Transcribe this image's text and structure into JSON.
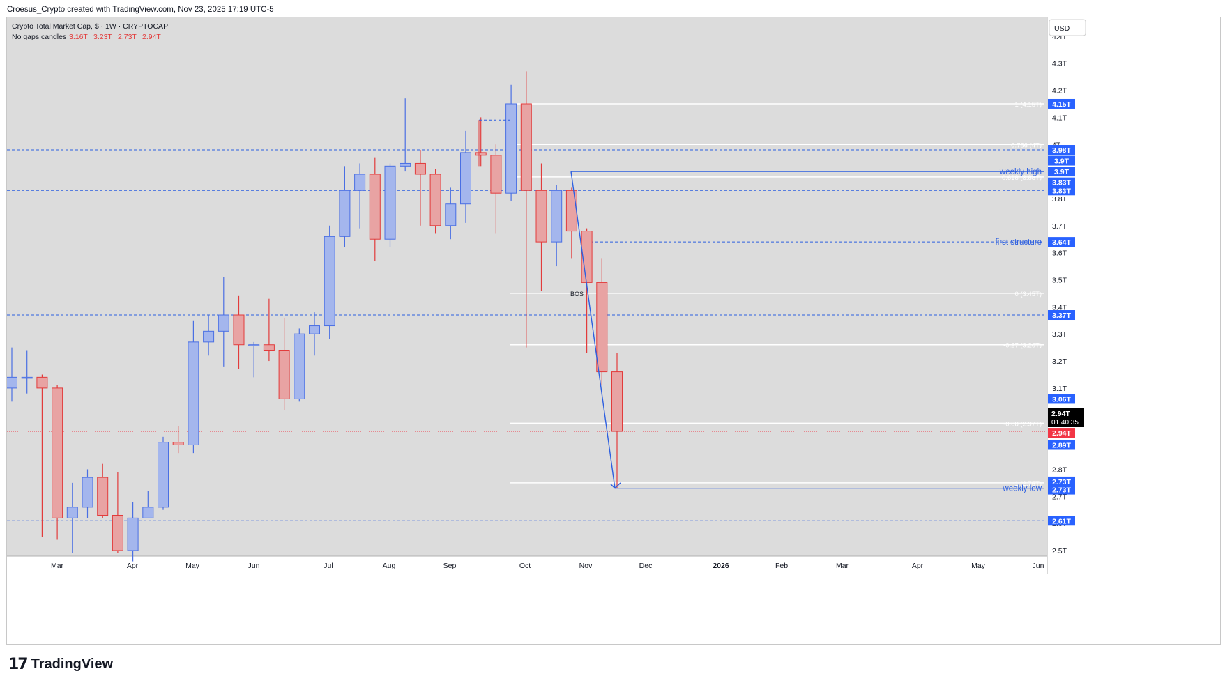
{
  "header": {
    "credit": "Croesus_Crypto created with TradingView.com, Nov 23, 2025 17:19 UTC-5"
  },
  "legend": {
    "title": "Crypto Total Market Cap, $ · 1W · CRYPTOCAP",
    "subtitle": "No gaps candles",
    "ohlc": [
      "3.16T",
      "3.23T",
      "2.73T",
      "2.94T"
    ]
  },
  "currency_button": "USD",
  "footer": {
    "brand": "TradingView",
    "logo_icon": "tradingview-logo-icon"
  },
  "colors": {
    "background": "#dcdcdc",
    "up": "#a4b6ed",
    "up_border": "#4a6fe3",
    "down": "#e8a3a3",
    "down_border": "#e23b3b",
    "level_line": "#2d5fe0",
    "fib_line": "#ffffff",
    "price_badge": "#2962ff",
    "last_price": "#f23645"
  },
  "chart_data": {
    "type": "candlestick",
    "title": "Crypto Total Market Cap",
    "ylim": [
      2.5,
      4.4
    ],
    "y_ticks": [
      "2.5T",
      "2.6T",
      "2.7T",
      "2.8T",
      "2.9T",
      "3T",
      "3.1T",
      "3.2T",
      "3.3T",
      "3.4T",
      "3.5T",
      "3.6T",
      "3.7T",
      "3.8T",
      "3.9T",
      "4T",
      "4.1T",
      "4.2T",
      "4.3T",
      "4.4T"
    ],
    "x_ticks": [
      "Mar",
      "Apr",
      "May",
      "Jun",
      "Jul",
      "Aug",
      "Sep",
      "Oct",
      "Nov",
      "Dec",
      "2026",
      "Feb",
      "Mar",
      "Apr",
      "May",
      "Jun"
    ],
    "candles": [
      {
        "o": 3.1,
        "h": 3.25,
        "l": 3.05,
        "c": 3.14
      },
      {
        "o": 3.14,
        "h": 3.24,
        "l": 3.08,
        "c": 3.14
      },
      {
        "o": 3.14,
        "h": 3.15,
        "l": 2.55,
        "c": 3.1
      },
      {
        "o": 3.1,
        "h": 3.11,
        "l": 2.54,
        "c": 2.62
      },
      {
        "o": 2.62,
        "h": 2.75,
        "l": 2.49,
        "c": 2.66
      },
      {
        "o": 2.66,
        "h": 2.8,
        "l": 2.62,
        "c": 2.77
      },
      {
        "o": 2.77,
        "h": 2.82,
        "l": 2.62,
        "c": 2.63
      },
      {
        "o": 2.63,
        "h": 2.79,
        "l": 2.49,
        "c": 2.5
      },
      {
        "o": 2.5,
        "h": 2.68,
        "l": 2.46,
        "c": 2.62
      },
      {
        "o": 2.62,
        "h": 2.72,
        "l": 2.62,
        "c": 2.66
      },
      {
        "o": 2.66,
        "h": 2.92,
        "l": 2.65,
        "c": 2.9
      },
      {
        "o": 2.9,
        "h": 2.96,
        "l": 2.86,
        "c": 2.89
      },
      {
        "o": 2.89,
        "h": 3.35,
        "l": 2.86,
        "c": 3.27
      },
      {
        "o": 3.27,
        "h": 3.37,
        "l": 3.22,
        "c": 3.31
      },
      {
        "o": 3.31,
        "h": 3.51,
        "l": 3.18,
        "c": 3.37
      },
      {
        "o": 3.37,
        "h": 3.44,
        "l": 3.17,
        "c": 3.26
      },
      {
        "o": 3.26,
        "h": 3.27,
        "l": 3.14,
        "c": 3.26
      },
      {
        "o": 3.26,
        "h": 3.43,
        "l": 3.2,
        "c": 3.24
      },
      {
        "o": 3.24,
        "h": 3.36,
        "l": 3.02,
        "c": 3.06
      },
      {
        "o": 3.06,
        "h": 3.32,
        "l": 3.05,
        "c": 3.3
      },
      {
        "o": 3.3,
        "h": 3.38,
        "l": 3.22,
        "c": 3.33
      },
      {
        "o": 3.33,
        "h": 3.7,
        "l": 3.28,
        "c": 3.66
      },
      {
        "o": 3.66,
        "h": 3.92,
        "l": 3.62,
        "c": 3.83
      },
      {
        "o": 3.83,
        "h": 3.93,
        "l": 3.69,
        "c": 3.89
      },
      {
        "o": 3.89,
        "h": 3.95,
        "l": 3.57,
        "c": 3.65
      },
      {
        "o": 3.65,
        "h": 3.93,
        "l": 3.62,
        "c": 3.92
      },
      {
        "o": 3.92,
        "h": 4.17,
        "l": 3.9,
        "c": 3.93
      },
      {
        "o": 3.93,
        "h": 3.98,
        "l": 3.7,
        "c": 3.89
      },
      {
        "o": 3.89,
        "h": 3.91,
        "l": 3.67,
        "c": 3.7
      },
      {
        "o": 3.7,
        "h": 3.84,
        "l": 3.65,
        "c": 3.78
      },
      {
        "o": 3.78,
        "h": 4.05,
        "l": 3.71,
        "c": 3.97
      },
      {
        "o": 3.97,
        "h": 4.1,
        "l": 3.92,
        "c": 3.96
      },
      {
        "o": 3.96,
        "h": 4.0,
        "l": 3.67,
        "c": 3.82
      },
      {
        "o": 3.82,
        "h": 4.22,
        "l": 3.79,
        "c": 4.15
      },
      {
        "o": 4.15,
        "h": 4.27,
        "l": 3.25,
        "c": 3.83
      },
      {
        "o": 3.83,
        "h": 3.93,
        "l": 3.46,
        "c": 3.64
      },
      {
        "o": 3.64,
        "h": 3.85,
        "l": 3.55,
        "c": 3.83
      },
      {
        "o": 3.83,
        "h": 3.84,
        "l": 3.58,
        "c": 3.68
      },
      {
        "o": 3.68,
        "h": 3.69,
        "l": 3.23,
        "c": 3.49
      },
      {
        "o": 3.49,
        "h": 3.58,
        "l": 3.11,
        "c": 3.16
      },
      {
        "o": 3.16,
        "h": 3.23,
        "l": 2.73,
        "c": 2.94
      }
    ],
    "horizontal_levels": [
      {
        "price": 3.9,
        "label": "weekly high"
      },
      {
        "price": 3.64,
        "label": "first structure"
      },
      {
        "price": 2.73,
        "label": "weekly low"
      },
      {
        "price": 3.98,
        "label": ""
      },
      {
        "price": 3.83,
        "label": ""
      },
      {
        "price": 3.37,
        "label": ""
      },
      {
        "price": 3.06,
        "label": ""
      },
      {
        "price": 2.89,
        "label": ""
      },
      {
        "price": 2.61,
        "label": ""
      }
    ],
    "fib_levels": [
      {
        "ratio": "1",
        "price": 4.15,
        "label": "1 (4.15T)"
      },
      {
        "ratio": "0.786",
        "price": 4.0,
        "label": "0.786 (4T)"
      },
      {
        "ratio": "0.618",
        "price": 3.88,
        "label": "0.618 (3.88T)"
      },
      {
        "ratio": "0",
        "price": 3.45,
        "label": "0 (3.45T)"
      },
      {
        "ratio": "-0.27",
        "price": 3.26,
        "label": "-0.27 (3.26T)"
      },
      {
        "ratio": "-0.68",
        "price": 2.97,
        "label": "-0.68 (2.97T)"
      },
      {
        "ratio": "-1",
        "price": 2.75,
        "label": "-1 (2.75T)"
      }
    ],
    "annotations": [
      {
        "label": "BOS",
        "price": 3.45
      }
    ],
    "price_badges": [
      {
        "price": 4.15,
        "label": "4.15T"
      },
      {
        "price": 3.98,
        "label": "3.98T"
      },
      {
        "price": 3.94,
        "label": "3.9T"
      },
      {
        "price": 3.9,
        "label": "3.9T"
      },
      {
        "price": 3.86,
        "label": "3.83T"
      },
      {
        "price": 3.83,
        "label": "3.83T"
      },
      {
        "price": 3.64,
        "label": "3.64T"
      },
      {
        "price": 3.37,
        "label": "3.37T"
      },
      {
        "price": 3.06,
        "label": "3.06T"
      },
      {
        "price": 2.89,
        "label": "2.89T"
      },
      {
        "price": 2.755,
        "label": "2.73T"
      },
      {
        "price": 2.725,
        "label": "2.73T"
      },
      {
        "price": 2.61,
        "label": "2.61T"
      }
    ],
    "current_price": {
      "price": 2.94,
      "label": "2.94T",
      "countdown": "01:40:35"
    }
  }
}
